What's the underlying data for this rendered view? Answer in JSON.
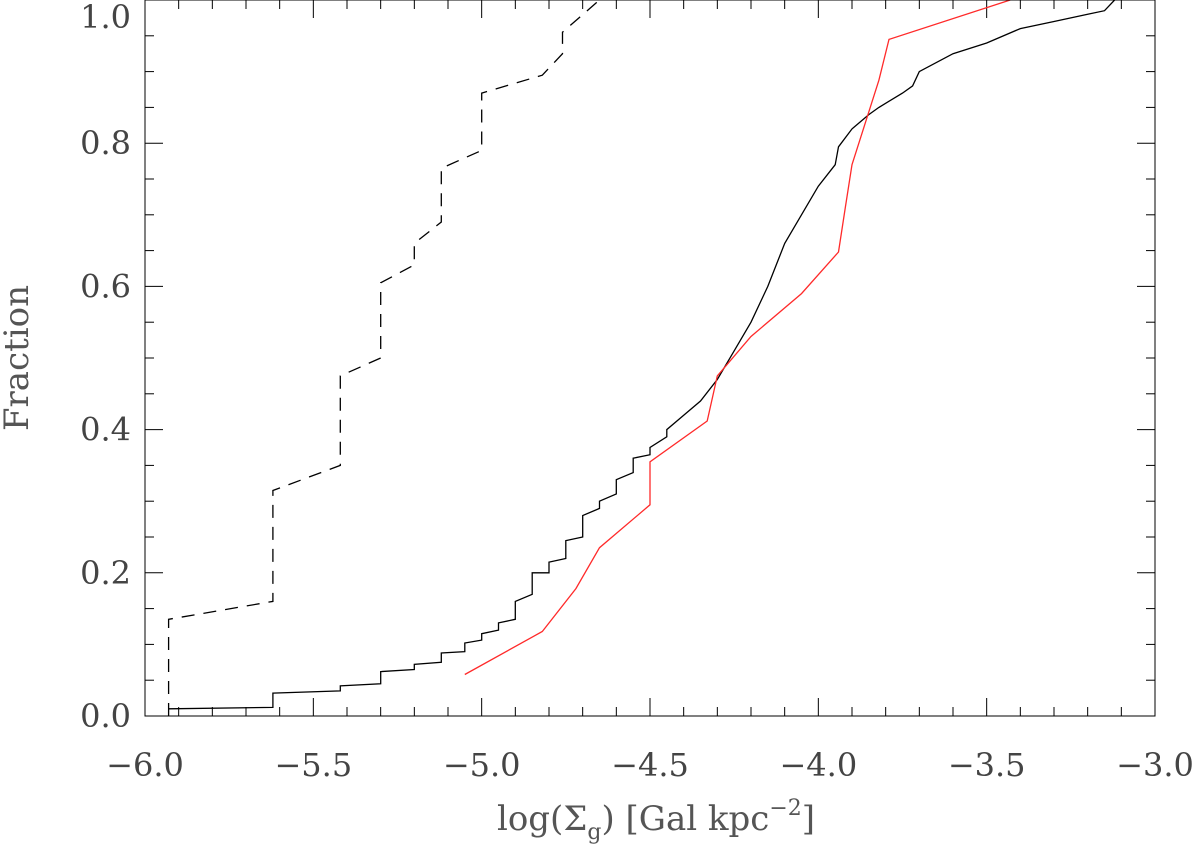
{
  "chart_data": {
    "type": "line",
    "title": "",
    "xlabel": {
      "main": "log(",
      "symbol": "Σ",
      "subscript": "g",
      "suffix": ") [Gal kpc",
      "superscript": "−2",
      "close": "]"
    },
    "ylabel": "Fraction",
    "xlim": [
      -6.0,
      -3.0
    ],
    "ylim": [
      0.0,
      1.0
    ],
    "xticks": [
      {
        "value": -6.0,
        "label": "−6.0"
      },
      {
        "value": -5.5,
        "label": "−5.5"
      },
      {
        "value": -5.0,
        "label": "−5.0"
      },
      {
        "value": -4.5,
        "label": "−4.5"
      },
      {
        "value": -4.0,
        "label": "−4.0"
      },
      {
        "value": -3.5,
        "label": "−3.5"
      },
      {
        "value": -3.0,
        "label": "−3.0"
      }
    ],
    "yticks": [
      {
        "value": 0.0,
        "label": "0.0"
      },
      {
        "value": 0.2,
        "label": "0.2"
      },
      {
        "value": 0.4,
        "label": "0.4"
      },
      {
        "value": 0.6,
        "label": "0.6"
      },
      {
        "value": 0.8,
        "label": "0.8"
      },
      {
        "value": 1.0,
        "label": "1.0"
      }
    ],
    "x_minor_step": 0.1,
    "y_minor_step": 0.05,
    "grid": false,
    "legend": "none",
    "series": [
      {
        "style": "dashed",
        "color": "#000000",
        "points": [
          [
            -5.93,
            0.0
          ],
          [
            -5.93,
            0.135
          ],
          [
            -5.62,
            0.16
          ],
          [
            -5.62,
            0.315
          ],
          [
            -5.42,
            0.35
          ],
          [
            -5.42,
            0.475
          ],
          [
            -5.3,
            0.5
          ],
          [
            -5.3,
            0.605
          ],
          [
            -5.2,
            0.63
          ],
          [
            -5.2,
            0.66
          ],
          [
            -5.12,
            0.69
          ],
          [
            -5.12,
            0.765
          ],
          [
            -5.0,
            0.79
          ],
          [
            -5.0,
            0.87
          ],
          [
            -4.82,
            0.895
          ],
          [
            -4.76,
            0.925
          ],
          [
            -4.76,
            0.955
          ],
          [
            -4.65,
            1.0
          ]
        ]
      },
      {
        "style": "solid",
        "color": "#000000",
        "points": [
          [
            -5.93,
            0.01
          ],
          [
            -5.62,
            0.012
          ],
          [
            -5.62,
            0.032
          ],
          [
            -5.42,
            0.035
          ],
          [
            -5.42,
            0.042
          ],
          [
            -5.3,
            0.045
          ],
          [
            -5.3,
            0.062
          ],
          [
            -5.2,
            0.065
          ],
          [
            -5.2,
            0.072
          ],
          [
            -5.12,
            0.075
          ],
          [
            -5.12,
            0.088
          ],
          [
            -5.05,
            0.09
          ],
          [
            -5.05,
            0.102
          ],
          [
            -5.0,
            0.106
          ],
          [
            -5.0,
            0.115
          ],
          [
            -4.95,
            0.12
          ],
          [
            -4.95,
            0.13
          ],
          [
            -4.9,
            0.135
          ],
          [
            -4.9,
            0.16
          ],
          [
            -4.85,
            0.17
          ],
          [
            -4.85,
            0.2
          ],
          [
            -4.8,
            0.2
          ],
          [
            -4.8,
            0.215
          ],
          [
            -4.75,
            0.22
          ],
          [
            -4.75,
            0.245
          ],
          [
            -4.7,
            0.25
          ],
          [
            -4.7,
            0.28
          ],
          [
            -4.65,
            0.29
          ],
          [
            -4.65,
            0.3
          ],
          [
            -4.6,
            0.31
          ],
          [
            -4.6,
            0.33
          ],
          [
            -4.55,
            0.34
          ],
          [
            -4.55,
            0.36
          ],
          [
            -4.5,
            0.365
          ],
          [
            -4.5,
            0.375
          ],
          [
            -4.45,
            0.39
          ],
          [
            -4.45,
            0.4
          ],
          [
            -4.4,
            0.42
          ],
          [
            -4.35,
            0.44
          ],
          [
            -4.3,
            0.47
          ],
          [
            -4.25,
            0.51
          ],
          [
            -4.2,
            0.55
          ],
          [
            -4.15,
            0.6
          ],
          [
            -4.1,
            0.66
          ],
          [
            -4.05,
            0.7
          ],
          [
            -4.0,
            0.74
          ],
          [
            -3.95,
            0.77
          ],
          [
            -3.94,
            0.795
          ],
          [
            -3.9,
            0.82
          ],
          [
            -3.85,
            0.84
          ],
          [
            -3.82,
            0.85
          ],
          [
            -3.75,
            0.87
          ],
          [
            -3.72,
            0.88
          ],
          [
            -3.7,
            0.9
          ],
          [
            -3.6,
            0.925
          ],
          [
            -3.5,
            0.94
          ],
          [
            -3.4,
            0.96
          ],
          [
            -3.3,
            0.97
          ],
          [
            -3.2,
            0.98
          ],
          [
            -3.15,
            0.985
          ],
          [
            -3.12,
            1.0
          ]
        ]
      },
      {
        "style": "solid",
        "color": "#ff2a2a",
        "points": [
          [
            -5.05,
            0.058
          ],
          [
            -4.82,
            0.118
          ],
          [
            -4.72,
            0.178
          ],
          [
            -4.65,
            0.235
          ],
          [
            -4.5,
            0.295
          ],
          [
            -4.5,
            0.355
          ],
          [
            -4.33,
            0.412
          ],
          [
            -4.3,
            0.475
          ],
          [
            -4.2,
            0.53
          ],
          [
            -4.05,
            0.59
          ],
          [
            -3.94,
            0.648
          ],
          [
            -3.92,
            0.71
          ],
          [
            -3.9,
            0.77
          ],
          [
            -3.82,
            0.888
          ],
          [
            -3.79,
            0.945
          ],
          [
            -3.43,
            1.0
          ]
        ]
      }
    ]
  }
}
